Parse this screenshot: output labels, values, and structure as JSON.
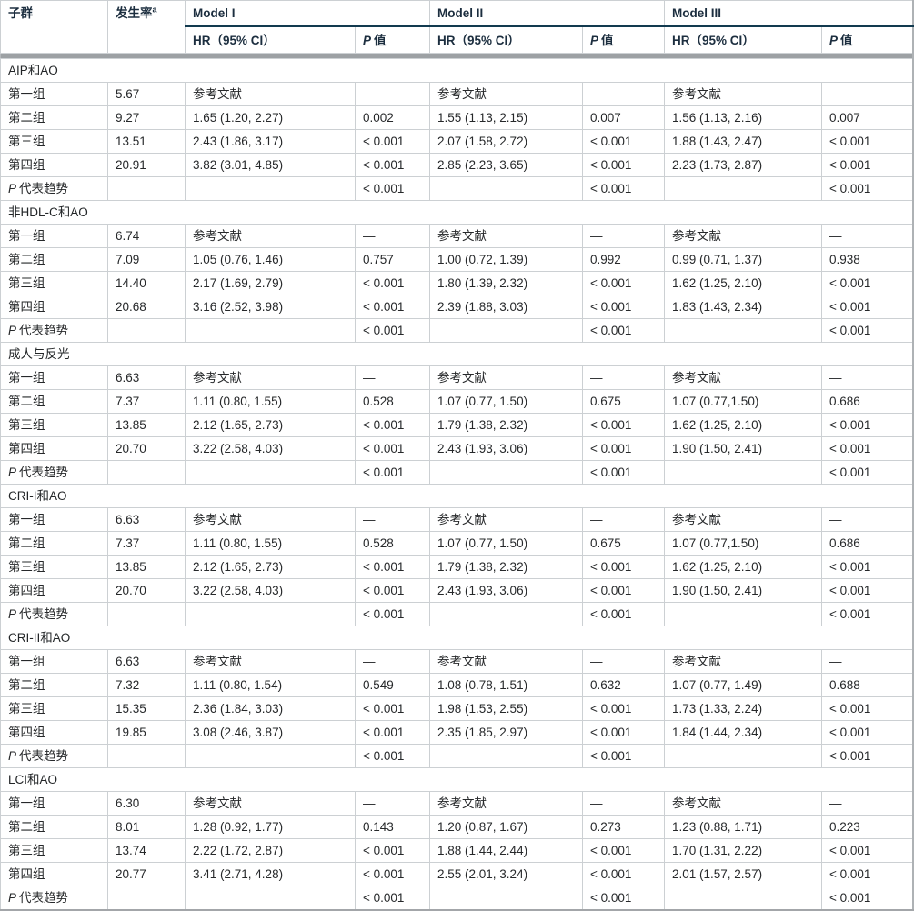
{
  "colors": {
    "model_rule": "#123a4f",
    "header_band": "#9da1a4",
    "grid_line": "#ccd0d3",
    "text": "#26282a"
  },
  "table": {
    "header": {
      "subgroup": "子群",
      "incidence": "发生率",
      "incidence_sup": "a",
      "models": [
        "Model I",
        "Model II",
        "Model III"
      ],
      "hr_label": "HR（95% CI）",
      "p_italic": "P",
      "p_suffix": "值"
    },
    "sections": [
      {
        "title": "AIP和AO",
        "rows": [
          {
            "label": "第一组",
            "incidence": "5.67",
            "m1_hr": "参考文献",
            "m1_p": "—",
            "m2_hr": "参考文献",
            "m2_p": "—",
            "m3_hr": "参考文献",
            "m3_p": "—"
          },
          {
            "label": "第二组",
            "incidence": "9.27",
            "m1_hr": "1.65 (1.20, 2.27)",
            "m1_p": "0.002",
            "m2_hr": "1.55 (1.13, 2.15)",
            "m2_p": "0.007",
            "m3_hr": "1.56 (1.13, 2.16)",
            "m3_p": "0.007"
          },
          {
            "label": "第三组",
            "incidence": "13.51",
            "m1_hr": "2.43 (1.86, 3.17)",
            "m1_p": "< 0.001",
            "m2_hr": "2.07 (1.58, 2.72)",
            "m2_p": "< 0.001",
            "m3_hr": "1.88 (1.43, 2.47)",
            "m3_p": "< 0.001"
          },
          {
            "label": "第四组",
            "incidence": "20.91",
            "m1_hr": "3.82 (3.01, 4.85)",
            "m1_p": "< 0.001",
            "m2_hr": "2.85 (2.23, 3.65)",
            "m2_p": "< 0.001",
            "m3_hr": "2.23 (1.73, 2.87)",
            "m3_p": "< 0.001"
          },
          {
            "label_italic": "P",
            "label": "代表趋势",
            "m1_p": "< 0.001",
            "m2_p": "< 0.001",
            "m3_p": "< 0.001"
          }
        ]
      },
      {
        "title": "非HDL-C和AO",
        "rows": [
          {
            "label": "第一组",
            "incidence": "6.74",
            "m1_hr": "参考文献",
            "m1_p": "—",
            "m2_hr": "参考文献",
            "m2_p": "—",
            "m3_hr": "参考文献",
            "m3_p": "—"
          },
          {
            "label": "第二组",
            "incidence": "7.09",
            "m1_hr": "1.05 (0.76, 1.46)",
            "m1_p": "0.757",
            "m2_hr": "1.00 (0.72, 1.39)",
            "m2_p": "0.992",
            "m3_hr": "0.99 (0.71, 1.37)",
            "m3_p": "0.938"
          },
          {
            "label": "第三组",
            "incidence": "14.40",
            "m1_hr": "2.17 (1.69, 2.79)",
            "m1_p": "< 0.001",
            "m2_hr": "1.80 (1.39, 2.32)",
            "m2_p": "< 0.001",
            "m3_hr": "1.62 (1.25, 2.10)",
            "m3_p": "< 0.001"
          },
          {
            "label": "第四组",
            "incidence": "20.68",
            "m1_hr": "3.16 (2.52, 3.98)",
            "m1_p": "< 0.001",
            "m2_hr": "2.39 (1.88, 3.03)",
            "m2_p": "< 0.001",
            "m3_hr": "1.83 (1.43, 2.34)",
            "m3_p": "< 0.001"
          },
          {
            "label_italic": "P",
            "label": "代表趋势",
            "m1_p": "< 0.001",
            "m2_p": "< 0.001",
            "m3_p": "< 0.001"
          }
        ]
      },
      {
        "title": "成人与反光",
        "rows": [
          {
            "label": "第一组",
            "incidence": "6.63",
            "m1_hr": "参考文献",
            "m1_p": "—",
            "m2_hr": "参考文献",
            "m2_p": "—",
            "m3_hr": "参考文献",
            "m3_p": "—"
          },
          {
            "label": "第二组",
            "incidence": "7.37",
            "m1_hr": "1.11 (0.80, 1.55)",
            "m1_p": "0.528",
            "m2_hr": "1.07 (0.77, 1.50)",
            "m2_p": "0.675",
            "m3_hr": "1.07 (0.77,1.50)",
            "m3_p": "0.686"
          },
          {
            "label": "第三组",
            "incidence": "13.85",
            "m1_hr": "2.12 (1.65, 2.73)",
            "m1_p": "< 0.001",
            "m2_hr": "1.79 (1.38, 2.32)",
            "m2_p": "< 0.001",
            "m3_hr": "1.62 (1.25, 2.10)",
            "m3_p": "< 0.001"
          },
          {
            "label": "第四组",
            "incidence": "20.70",
            "m1_hr": "3.22 (2.58, 4.03)",
            "m1_p": "< 0.001",
            "m2_hr": "2.43 (1.93, 3.06)",
            "m2_p": "< 0.001",
            "m3_hr": "1.90 (1.50, 2.41)",
            "m3_p": "< 0.001"
          },
          {
            "label_italic": "P",
            "label": "代表趋势",
            "m1_p": "< 0.001",
            "m2_p": "< 0.001",
            "m3_p": "< 0.001"
          }
        ]
      },
      {
        "title": "CRI-I和AO",
        "rows": [
          {
            "label": "第一组",
            "incidence": "6.63",
            "m1_hr": "参考文献",
            "m1_p": "—",
            "m2_hr": "参考文献",
            "m2_p": "—",
            "m3_hr": "参考文献",
            "m3_p": "—"
          },
          {
            "label": "第二组",
            "incidence": "7.37",
            "m1_hr": "1.11 (0.80, 1.55)",
            "m1_p": "0.528",
            "m2_hr": "1.07 (0.77, 1.50)",
            "m2_p": "0.675",
            "m3_hr": "1.07 (0.77,1.50)",
            "m3_p": "0.686"
          },
          {
            "label": "第三组",
            "incidence": "13.85",
            "m1_hr": "2.12 (1.65, 2.73)",
            "m1_p": "< 0.001",
            "m2_hr": "1.79 (1.38, 2.32)",
            "m2_p": "< 0.001",
            "m3_hr": "1.62 (1.25, 2.10)",
            "m3_p": "< 0.001"
          },
          {
            "label": "第四组",
            "incidence": "20.70",
            "m1_hr": "3.22 (2.58, 4.03)",
            "m1_p": "< 0.001",
            "m2_hr": "2.43 (1.93, 3.06)",
            "m2_p": "< 0.001",
            "m3_hr": "1.90 (1.50, 2.41)",
            "m3_p": "< 0.001"
          },
          {
            "label_italic": "P",
            "label": "代表趋势",
            "m1_p": "< 0.001",
            "m2_p": "< 0.001",
            "m3_p": "< 0.001"
          }
        ]
      },
      {
        "title": "CRI-II和AO",
        "rows": [
          {
            "label": "第一组",
            "incidence": "6.63",
            "m1_hr": "参考文献",
            "m1_p": "—",
            "m2_hr": "参考文献",
            "m2_p": "—",
            "m3_hr": "参考文献",
            "m3_p": "—"
          },
          {
            "label": "第二组",
            "incidence": "7.32",
            "m1_hr": "1.11 (0.80, 1.54)",
            "m1_p": "0.549",
            "m2_hr": "1.08 (0.78, 1.51)",
            "m2_p": "0.632",
            "m3_hr": "1.07 (0.77, 1.49)",
            "m3_p": "0.688"
          },
          {
            "label": "第三组",
            "incidence": "15.35",
            "m1_hr": "2.36 (1.84, 3.03)",
            "m1_p": "< 0.001",
            "m2_hr": "1.98 (1.53, 2.55)",
            "m2_p": "< 0.001",
            "m3_hr": "1.73 (1.33, 2.24)",
            "m3_p": "< 0.001"
          },
          {
            "label": "第四组",
            "incidence": "19.85",
            "m1_hr": "3.08 (2.46, 3.87)",
            "m1_p": "< 0.001",
            "m2_hr": "2.35 (1.85, 2.97)",
            "m2_p": "< 0.001",
            "m3_hr": "1.84 (1.44, 2.34)",
            "m3_p": "< 0.001"
          },
          {
            "label_italic": "P",
            "label": "代表趋势",
            "m1_p": "< 0.001",
            "m2_p": "< 0.001",
            "m3_p": "< 0.001"
          }
        ]
      },
      {
        "title": "LCI和AO",
        "rows": [
          {
            "label": "第一组",
            "incidence": "6.30",
            "m1_hr": "参考文献",
            "m1_p": "—",
            "m2_hr": "参考文献",
            "m2_p": "—",
            "m3_hr": "参考文献",
            "m3_p": "—"
          },
          {
            "label": "第二组",
            "incidence": "8.01",
            "m1_hr": "1.28 (0.92, 1.77)",
            "m1_p": "0.143",
            "m2_hr": "1.20 (0.87, 1.67)",
            "m2_p": "0.273",
            "m3_hr": "1.23 (0.88, 1.71)",
            "m3_p": "0.223"
          },
          {
            "label": "第三组",
            "incidence": "13.74",
            "m1_hr": "2.22 (1.72, 2.87)",
            "m1_p": "< 0.001",
            "m2_hr": "1.88 (1.44, 2.44)",
            "m2_p": "< 0.001",
            "m3_hr": "1.70 (1.31, 2.22)",
            "m3_p": "< 0.001"
          },
          {
            "label": "第四组",
            "incidence": "20.77",
            "m1_hr": "3.41 (2.71, 4.28)",
            "m1_p": "< 0.001",
            "m2_hr": "2.55 (2.01, 3.24)",
            "m2_p": "< 0.001",
            "m3_hr": "2.01 (1.57, 2.57)",
            "m3_p": "< 0.001"
          },
          {
            "label_italic": "P",
            "label": "代表趋势",
            "m1_p": "< 0.001",
            "m2_p": "< 0.001",
            "m3_p": "< 0.001"
          }
        ]
      }
    ]
  }
}
